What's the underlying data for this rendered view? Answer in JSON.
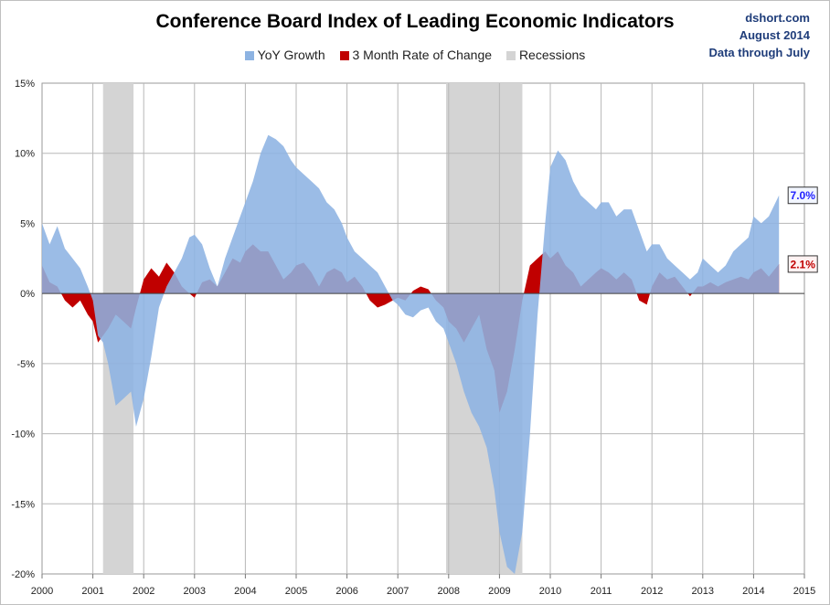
{
  "chart_data": {
    "type": "area",
    "title": "Conference Board Index of Leading Economic Indicators",
    "source_lines": [
      "dshort.com",
      "August 2014",
      "Data through July"
    ],
    "legend": [
      {
        "label": "YoY Growth",
        "color": "#8db3e2"
      },
      {
        "label": "3 Month Rate of Change",
        "color": "#c00000"
      },
      {
        "label": "Recessions",
        "color": "#d4d4d4"
      }
    ],
    "xlim": [
      2000,
      2015
    ],
    "ylim": [
      -20,
      15
    ],
    "x_ticks": [
      2000,
      2001,
      2002,
      2003,
      2004,
      2005,
      2006,
      2007,
      2008,
      2009,
      2010,
      2011,
      2012,
      2013,
      2014,
      2015
    ],
    "y_ticks": [
      -20,
      -15,
      -10,
      -5,
      0,
      5,
      10,
      15
    ],
    "y_tick_labels": [
      "-20%",
      "-15%",
      "-10%",
      "-5%",
      "0%",
      "5%",
      "10%",
      "15%"
    ],
    "recessions": [
      [
        2001.2,
        2001.8
      ],
      [
        2007.95,
        2009.45
      ]
    ],
    "series": [
      {
        "name": "YoY Growth",
        "color": "#8db3e2",
        "x": [
          2000.0,
          2000.15,
          2000.3,
          2000.45,
          2000.6,
          2000.75,
          2000.9,
          2001.0,
          2001.1,
          2001.2,
          2001.3,
          2001.45,
          2001.6,
          2001.75,
          2001.85,
          2002.0,
          2002.15,
          2002.3,
          2002.45,
          2002.6,
          2002.75,
          2002.9,
          2003.0,
          2003.15,
          2003.3,
          2003.45,
          2003.6,
          2003.75,
          2003.9,
          2004.0,
          2004.15,
          2004.3,
          2004.45,
          2004.6,
          2004.75,
          2004.9,
          2005.0,
          2005.15,
          2005.3,
          2005.45,
          2005.6,
          2005.75,
          2005.9,
          2006.0,
          2006.15,
          2006.3,
          2006.45,
          2006.6,
          2006.75,
          2006.9,
          2007.0,
          2007.15,
          2007.3,
          2007.45,
          2007.6,
          2007.75,
          2007.9,
          2008.0,
          2008.15,
          2008.3,
          2008.45,
          2008.6,
          2008.75,
          2008.9,
          2009.0,
          2009.15,
          2009.3,
          2009.45,
          2009.6,
          2009.75,
          2009.9,
          2010.0,
          2010.15,
          2010.3,
          2010.45,
          2010.6,
          2010.75,
          2010.9,
          2011.0,
          2011.15,
          2011.3,
          2011.45,
          2011.6,
          2011.75,
          2011.9,
          2012.0,
          2012.15,
          2012.3,
          2012.45,
          2012.6,
          2012.75,
          2012.9,
          2013.0,
          2013.15,
          2013.3,
          2013.45,
          2013.6,
          2013.75,
          2013.9,
          2014.0,
          2014.15,
          2014.3,
          2014.5
        ],
        "values": [
          5.0,
          3.5,
          4.8,
          3.2,
          2.5,
          1.8,
          0.5,
          -0.5,
          -3.0,
          -3.5,
          -5.0,
          -8.0,
          -7.5,
          -7.0,
          -9.5,
          -7.5,
          -4.5,
          -1.0,
          0.5,
          1.5,
          2.5,
          4.0,
          4.2,
          3.5,
          1.8,
          0.5,
          2.5,
          4.0,
          5.5,
          6.5,
          8.0,
          10.0,
          11.3,
          11.0,
          10.5,
          9.5,
          9.0,
          8.5,
          8.0,
          7.5,
          6.5,
          6.0,
          5.0,
          4.0,
          3.0,
          2.5,
          2.0,
          1.5,
          0.5,
          -0.5,
          -0.8,
          -1.5,
          -1.7,
          -1.2,
          -1.0,
          -2.0,
          -2.5,
          -3.5,
          -5.0,
          -7.0,
          -8.5,
          -9.5,
          -11.0,
          -14.0,
          -17.0,
          -19.5,
          -20.0,
          -17.0,
          -10.0,
          -1.5,
          5.0,
          9.0,
          10.2,
          9.5,
          8.0,
          7.0,
          6.5,
          6.0,
          6.5,
          6.5,
          5.5,
          6.0,
          6.0,
          4.5,
          3.0,
          3.5,
          3.5,
          2.5,
          2.0,
          1.5,
          1.0,
          1.5,
          2.5,
          2.0,
          1.5,
          2.0,
          3.0,
          3.5,
          4.0,
          5.5,
          5.0,
          5.5,
          7.0
        ]
      },
      {
        "name": "3 Month Rate of Change",
        "color": "#c00000",
        "x": [
          2000.0,
          2000.15,
          2000.3,
          2000.45,
          2000.6,
          2000.75,
          2000.9,
          2001.0,
          2001.1,
          2001.2,
          2001.3,
          2001.45,
          2001.6,
          2001.75,
          2001.85,
          2002.0,
          2002.15,
          2002.3,
          2002.45,
          2002.6,
          2002.75,
          2002.9,
          2003.0,
          2003.15,
          2003.3,
          2003.45,
          2003.6,
          2003.75,
          2003.9,
          2004.0,
          2004.15,
          2004.3,
          2004.45,
          2004.6,
          2004.75,
          2004.9,
          2005.0,
          2005.15,
          2005.3,
          2005.45,
          2005.6,
          2005.75,
          2005.9,
          2006.0,
          2006.15,
          2006.3,
          2006.45,
          2006.6,
          2006.75,
          2006.9,
          2007.0,
          2007.15,
          2007.3,
          2007.45,
          2007.6,
          2007.75,
          2007.9,
          2008.0,
          2008.15,
          2008.3,
          2008.45,
          2008.6,
          2008.75,
          2008.9,
          2009.0,
          2009.15,
          2009.3,
          2009.45,
          2009.6,
          2009.75,
          2009.9,
          2010.0,
          2010.15,
          2010.3,
          2010.45,
          2010.6,
          2010.75,
          2010.9,
          2011.0,
          2011.15,
          2011.3,
          2011.45,
          2011.6,
          2011.75,
          2011.9,
          2012.0,
          2012.15,
          2012.3,
          2012.45,
          2012.6,
          2012.75,
          2012.9,
          2013.0,
          2013.15,
          2013.3,
          2013.45,
          2013.6,
          2013.75,
          2013.9,
          2014.0,
          2014.15,
          2014.3,
          2014.5
        ],
        "values": [
          2.0,
          0.8,
          0.5,
          -0.5,
          -1.0,
          -0.5,
          -1.5,
          -2.0,
          -3.5,
          -3.0,
          -2.5,
          -1.5,
          -2.0,
          -2.5,
          -1.0,
          1.0,
          1.8,
          1.2,
          2.2,
          1.5,
          0.5,
          0.0,
          -0.3,
          0.8,
          1.0,
          0.5,
          1.5,
          2.5,
          2.2,
          3.0,
          3.5,
          3.0,
          3.0,
          2.0,
          1.0,
          1.5,
          2.0,
          2.2,
          1.5,
          0.5,
          1.5,
          1.8,
          1.5,
          0.8,
          1.2,
          0.5,
          -0.5,
          -1.0,
          -0.8,
          -0.5,
          -0.3,
          -0.5,
          0.2,
          0.5,
          0.3,
          -0.5,
          -1.0,
          -2.0,
          -2.5,
          -3.5,
          -2.5,
          -1.5,
          -4.0,
          -5.5,
          -8.5,
          -7.0,
          -4.0,
          -0.5,
          2.0,
          2.5,
          3.0,
          2.5,
          3.0,
          2.0,
          1.5,
          0.5,
          1.0,
          1.5,
          1.8,
          1.5,
          1.0,
          1.5,
          1.0,
          -0.5,
          -0.8,
          0.5,
          1.5,
          1.0,
          1.2,
          0.5,
          -0.2,
          0.5,
          0.5,
          0.8,
          0.5,
          0.8,
          1.0,
          1.2,
          1.0,
          1.5,
          1.8,
          1.2,
          2.1
        ]
      }
    ],
    "callouts": [
      {
        "label": "7.0%",
        "color": "#1f1fff",
        "value": 7.0
      },
      {
        "label": "2.1%",
        "color": "#c00000",
        "value": 2.1
      }
    ]
  }
}
